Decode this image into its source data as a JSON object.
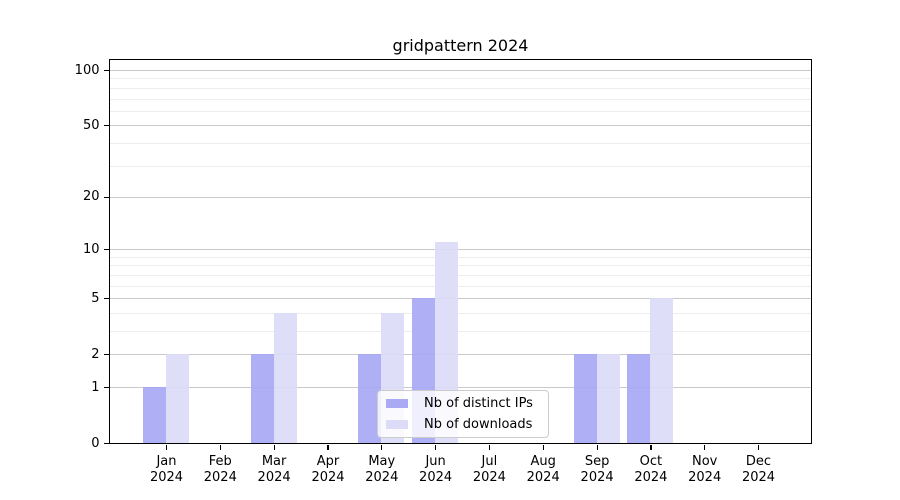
{
  "chart_data": {
    "type": "bar",
    "title": "gridpattern 2024",
    "x_categories": [
      "Jan",
      "Feb",
      "Mar",
      "Apr",
      "May",
      "Jun",
      "Jul",
      "Aug",
      "Sep",
      "Oct",
      "Nov",
      "Dec"
    ],
    "x_year": "2024",
    "series": [
      {
        "name": "Nb of distinct IPs",
        "color": "#a9a9f4",
        "values": [
          1,
          0,
          2,
          0,
          2,
          5,
          0,
          0,
          2,
          2,
          0,
          0
        ]
      },
      {
        "name": "Nb of downloads",
        "color": "#dcdcf9",
        "values": [
          2,
          0,
          4,
          0,
          4,
          11,
          0,
          0,
          2,
          5,
          0,
          0
        ]
      }
    ],
    "xlabel": "",
    "ylabel": "",
    "y_scale": "log1p",
    "y_ticks_labeled": [
      0,
      1,
      2,
      5,
      10,
      20,
      50,
      100
    ],
    "y_minor_gridlines": [
      3,
      4,
      6,
      7,
      8,
      9,
      30,
      40,
      60,
      70,
      80,
      90
    ],
    "ylim": [
      0,
      113
    ],
    "grid": true,
    "legend": {
      "position": "inside-bottom-center",
      "items": [
        "Nb of distinct IPs",
        "Nb of downloads"
      ]
    },
    "colors": {
      "grid_major": "#c9c9c9",
      "grid_minor": "#ededed",
      "axis": "#000000",
      "background": "#ffffff"
    }
  }
}
